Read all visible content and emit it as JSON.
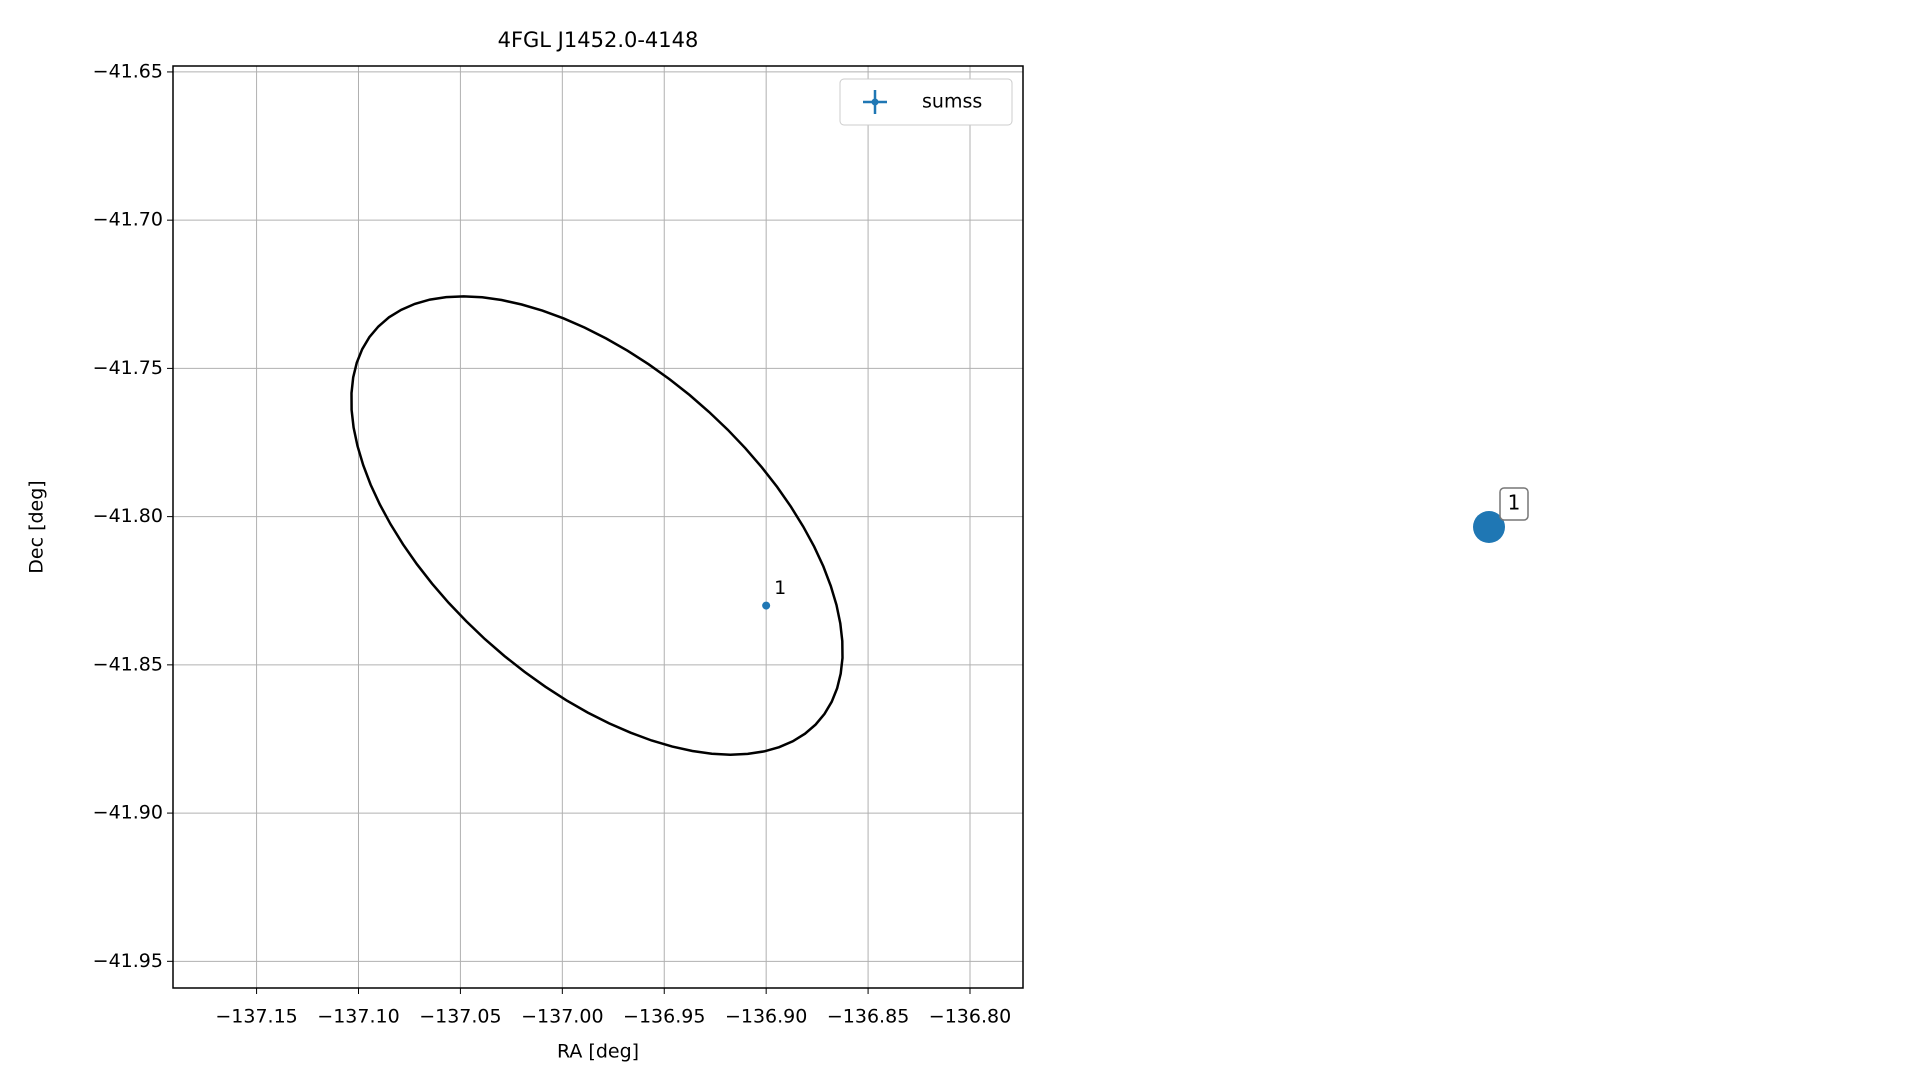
{
  "chart_data": {
    "type": "scatter",
    "title": "4FGL J1452.0-4148",
    "x_label": "RA [deg]",
    "y_label": "Dec [deg]",
    "xlim": [
      -137.191,
      -136.774
    ],
    "ylim": [
      -41.959,
      -41.648
    ],
    "xticks": [
      {
        "value": -137.15,
        "label": "−137.15"
      },
      {
        "value": -137.1,
        "label": "−137.10"
      },
      {
        "value": -137.05,
        "label": "−137.05"
      },
      {
        "value": -137.0,
        "label": "−137.00"
      },
      {
        "value": -136.95,
        "label": "−136.95"
      },
      {
        "value": -136.9,
        "label": "−136.90"
      },
      {
        "value": -136.85,
        "label": "−136.85"
      },
      {
        "value": -136.8,
        "label": "−136.80"
      }
    ],
    "yticks": [
      {
        "value": -41.65,
        "label": "−41.65"
      },
      {
        "value": -41.7,
        "label": "−41.70"
      },
      {
        "value": -41.75,
        "label": "−41.75"
      },
      {
        "value": -41.8,
        "label": "−41.80"
      },
      {
        "value": -41.85,
        "label": "−41.85"
      },
      {
        "value": -41.9,
        "label": "−41.90"
      },
      {
        "value": -41.95,
        "label": "−41.95"
      }
    ],
    "grid": true,
    "legend": "upper right",
    "series": [
      {
        "name": "sumss",
        "color": "#1f77b4",
        "x": [
          -136.9
        ],
        "values": [
          -41.83
        ],
        "point_labels": [
          "1"
        ]
      }
    ],
    "ellipse": {
      "center_x": -136.983,
      "center_y": -41.803,
      "semi_major": 0.13,
      "semi_minor": 0.06,
      "angle": -25,
      "color": "#000000"
    }
  },
  "side_marker": {
    "label": "1",
    "color": "#1f77b4"
  }
}
